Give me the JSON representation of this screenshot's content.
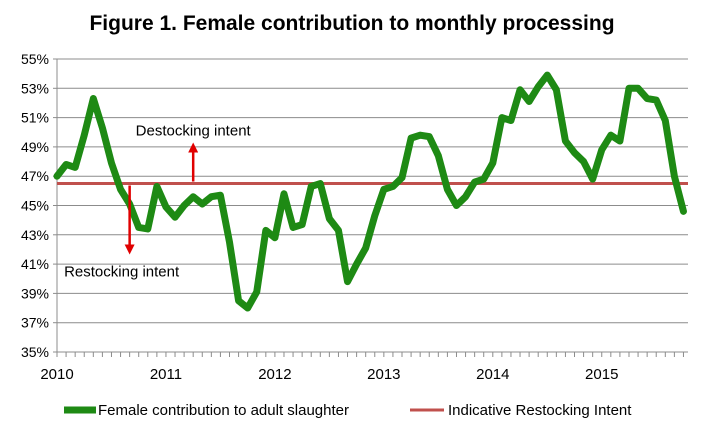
{
  "chart_data": {
    "type": "line",
    "title": "Figure 1. Female contribution to monthly processing",
    "xlabel": "",
    "ylabel": "",
    "ylim": [
      35,
      55
    ],
    "y_ticks": [
      "35%",
      "37%",
      "39%",
      "41%",
      "43%",
      "45%",
      "47%",
      "49%",
      "51%",
      "53%",
      "55%"
    ],
    "x_ticks": [
      "2010",
      "2011",
      "2012",
      "2013",
      "2014",
      "2015"
    ],
    "grid": true,
    "legend_position": "bottom",
    "series": [
      {
        "name": "Female contribution to adult slaughter",
        "color": "#1e8a14",
        "x": [
          "2010-01",
          "2010-02",
          "2010-03",
          "2010-04",
          "2010-05",
          "2010-06",
          "2010-07",
          "2010-08",
          "2010-09",
          "2010-10",
          "2010-11",
          "2010-12",
          "2011-01",
          "2011-02",
          "2011-03",
          "2011-04",
          "2011-05",
          "2011-06",
          "2011-07",
          "2011-08",
          "2011-09",
          "2011-10",
          "2011-11",
          "2011-12",
          "2012-01",
          "2012-02",
          "2012-03",
          "2012-04",
          "2012-05",
          "2012-06",
          "2012-07",
          "2012-08",
          "2012-09",
          "2012-10",
          "2012-11",
          "2012-12",
          "2013-01",
          "2013-02",
          "2013-03",
          "2013-04",
          "2013-05",
          "2013-06",
          "2013-07",
          "2013-08",
          "2013-09",
          "2013-10",
          "2013-11",
          "2013-12",
          "2014-01",
          "2014-02",
          "2014-03",
          "2014-04",
          "2014-05",
          "2014-06",
          "2014-07",
          "2014-08",
          "2014-09",
          "2014-10",
          "2014-11",
          "2014-12",
          "2015-01",
          "2015-02",
          "2015-03",
          "2015-04",
          "2015-05",
          "2015-06",
          "2015-07",
          "2015-08",
          "2015-09",
          "2015-10"
        ],
        "values": [
          47.0,
          47.8,
          47.6,
          49.8,
          52.3,
          50.3,
          47.9,
          46.1,
          45.1,
          43.5,
          43.4,
          46.3,
          44.9,
          44.2,
          45.0,
          45.6,
          45.1,
          45.6,
          45.7,
          42.5,
          38.5,
          38.0,
          39.1,
          43.3,
          42.8,
          45.8,
          43.5,
          43.7,
          46.3,
          46.5,
          44.1,
          43.3,
          39.8,
          41.0,
          42.1,
          44.3,
          46.1,
          46.3,
          46.9,
          49.6,
          49.8,
          49.7,
          48.4,
          46.1,
          45.0,
          45.6,
          46.6,
          46.8,
          47.9,
          51.0,
          50.8,
          52.9,
          52.1,
          53.1,
          53.9,
          52.9,
          49.4,
          48.6,
          48.0,
          46.8,
          48.8,
          49.8,
          49.4,
          53.0,
          53.0,
          52.3,
          52.2,
          50.8,
          47.0,
          44.6
        ]
      },
      {
        "name": "Indicative Restocking Intent",
        "color": "#c0504d",
        "value": 46.5
      }
    ],
    "annotations": [
      {
        "text": "Destocking intent",
        "x": "2011-04",
        "y": 46.5,
        "direction": "up"
      },
      {
        "text": "Restocking intent",
        "x": "2010-09",
        "y": 46.5,
        "direction": "down"
      }
    ]
  }
}
